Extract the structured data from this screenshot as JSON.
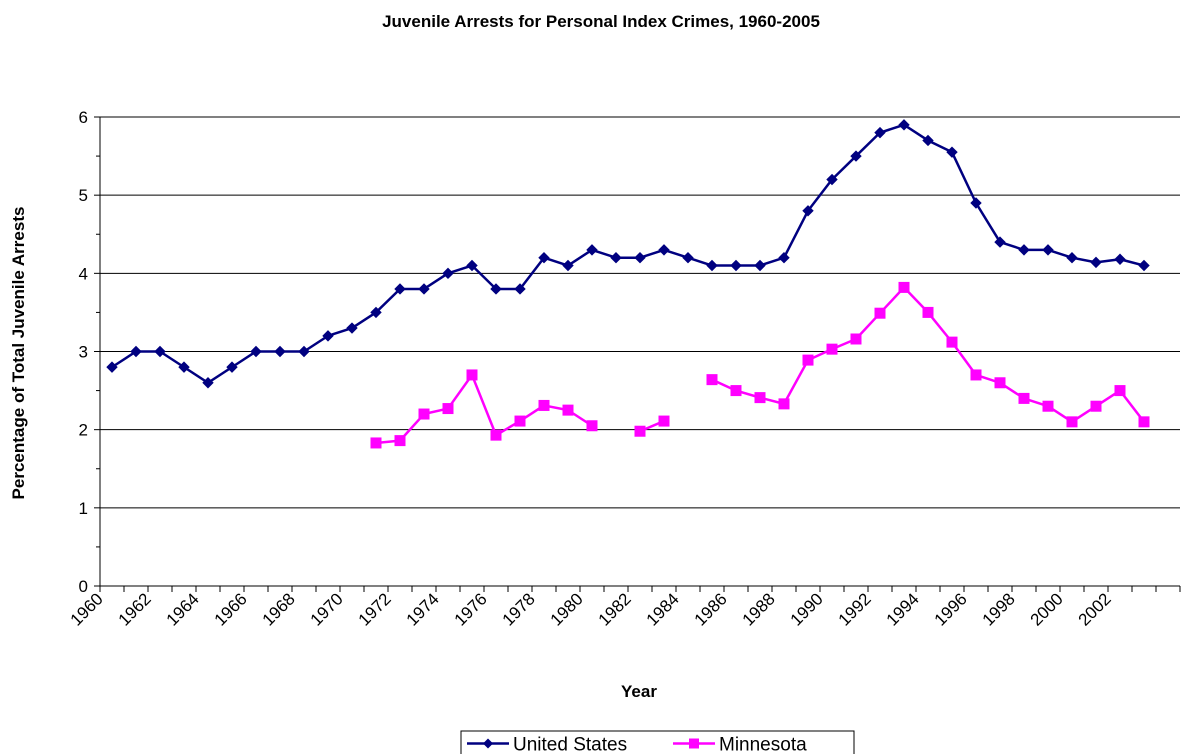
{
  "chart_data": {
    "type": "line",
    "title": "Juvenile Arrests for Personal Index Crimes, 1960-2005",
    "xlabel": "Year",
    "ylabel": "Percentage of Total Juvenile Arrests",
    "ylim": [
      0,
      6
    ],
    "yticks": [
      "0",
      "1",
      "2",
      "3",
      "4",
      "5",
      "6"
    ],
    "xtick_labels": [
      "1960",
      "1962",
      "1964",
      "1966",
      "1968",
      "1970",
      "1972",
      "1974",
      "1976",
      "1978",
      "1980",
      "1982",
      "1984",
      "1986",
      "1988",
      "1990",
      "1992",
      "1994",
      "1996",
      "1998",
      "2000",
      "2002"
    ],
    "x": [
      1960,
      1961,
      1962,
      1963,
      1964,
      1965,
      1966,
      1967,
      1968,
      1969,
      1970,
      1971,
      1972,
      1973,
      1974,
      1975,
      1976,
      1977,
      1978,
      1979,
      1980,
      1981,
      1982,
      1983,
      1984,
      1985,
      1986,
      1987,
      1988,
      1989,
      1990,
      1991,
      1992,
      1993,
      1994,
      1995,
      1996,
      1997,
      1998,
      1999,
      2000,
      2001,
      2002,
      2003,
      2004
    ],
    "grid": "horizontal",
    "legend_position": "bottom",
    "series": [
      {
        "name": "United States",
        "color": "#000080",
        "marker": "diamond",
        "values": [
          2.8,
          3.0,
          3.0,
          2.8,
          2.6,
          2.8,
          3.0,
          3.0,
          3.0,
          3.2,
          3.3,
          3.5,
          3.8,
          3.8,
          4.0,
          4.1,
          3.8,
          3.8,
          4.2,
          4.1,
          4.3,
          4.2,
          4.2,
          4.3,
          4.2,
          4.1,
          4.1,
          4.1,
          4.2,
          4.8,
          5.2,
          5.5,
          5.8,
          5.9,
          5.7,
          5.55,
          4.9,
          4.4,
          4.3,
          4.3,
          4.2,
          4.14,
          4.18,
          4.1,
          null
        ]
      },
      {
        "name": "Minnesota",
        "color": "#FF00FF",
        "marker": "square",
        "values": [
          null,
          null,
          null,
          null,
          null,
          null,
          null,
          null,
          null,
          null,
          null,
          1.83,
          1.86,
          2.2,
          2.27,
          2.7,
          1.93,
          2.11,
          2.31,
          2.25,
          2.05,
          null,
          1.98,
          2.11,
          null,
          2.64,
          2.5,
          2.41,
          2.33,
          2.89,
          3.03,
          3.16,
          3.49,
          3.82,
          3.5,
          3.12,
          2.7,
          2.6,
          2.4,
          2.3,
          2.1,
          2.3,
          2.5,
          2.1,
          null
        ]
      }
    ]
  }
}
